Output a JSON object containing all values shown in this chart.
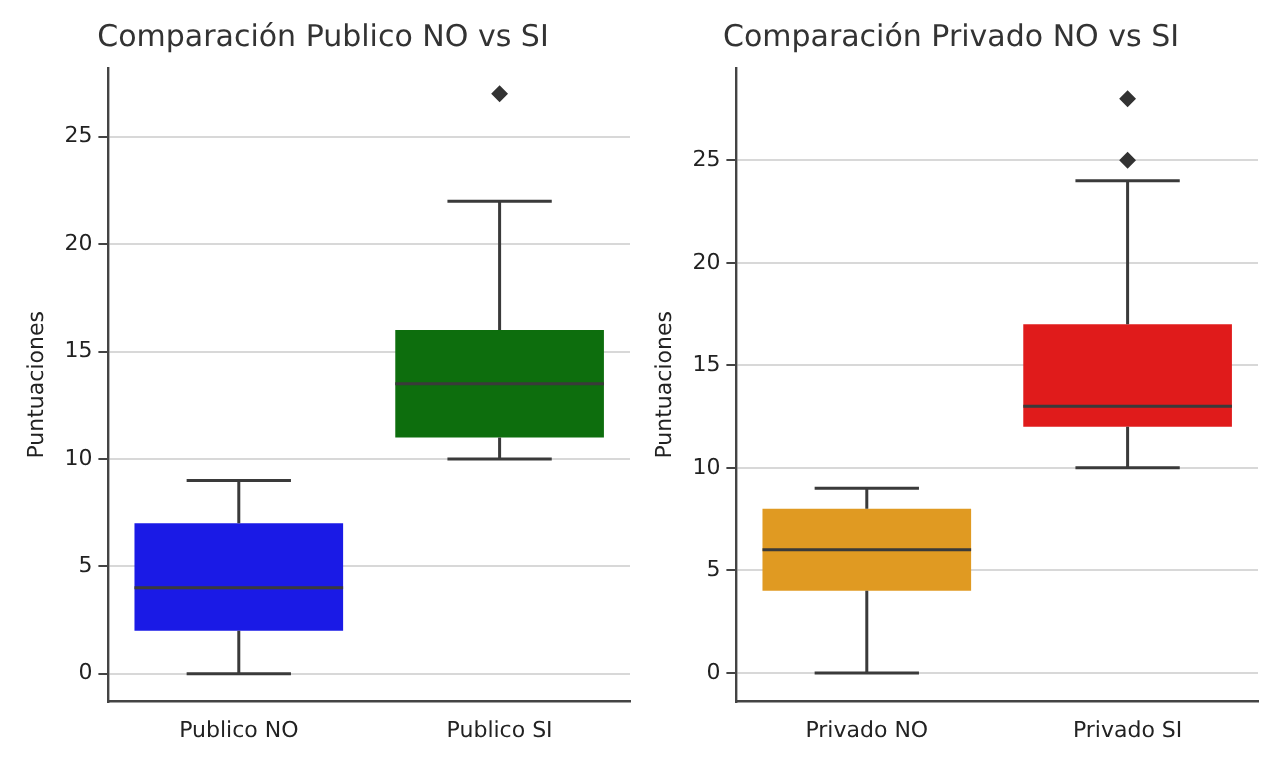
{
  "chart_data": [
    {
      "type": "box",
      "title": "Comparación Publico NO vs SI",
      "ylabel": "Puntuaciones",
      "categories": [
        "Publico NO",
        "Publico SI"
      ],
      "colors": [
        "#1a1ae6",
        "#0d6e0d"
      ],
      "boxes": [
        {
          "low": 0,
          "q1": 2,
          "median": 4,
          "q3": 7,
          "high": 9
        },
        {
          "low": 10,
          "q1": 11,
          "median": 13.5,
          "q3": 16,
          "high": 22,
          "outliers": [
            27
          ]
        }
      ],
      "ylim": [
        -1.3,
        28.2
      ],
      "yticks": [
        0,
        5,
        10,
        15,
        20,
        25
      ],
      "grid": "y",
      "marker": "diamond"
    },
    {
      "type": "box",
      "title": "Comparación Privado NO vs SI",
      "ylabel": "Puntuaciones",
      "categories": [
        "Privado NO",
        "Privado SI"
      ],
      "colors": [
        "#e09a22",
        "#e01b1b"
      ],
      "boxes": [
        {
          "low": 0,
          "q1": 4,
          "median": 6,
          "q3": 8,
          "high": 9
        },
        {
          "low": 10,
          "q1": 12,
          "median": 13,
          "q3": 17,
          "high": 24,
          "outliers": [
            25,
            28
          ]
        }
      ],
      "ylim": [
        -1.4,
        29.5
      ],
      "yticks": [
        0,
        5,
        10,
        15,
        20,
        25
      ],
      "grid": "y",
      "marker": "diamond"
    }
  ]
}
